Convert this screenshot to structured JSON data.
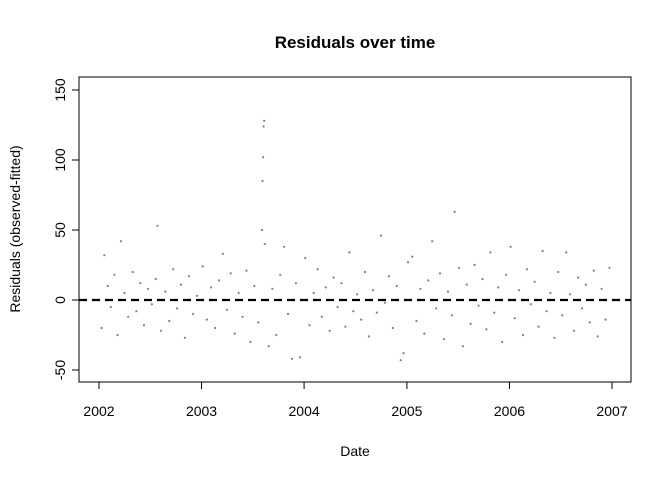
{
  "chart_data": {
    "type": "scatter",
    "title": "Residuals over time",
    "xlabel": "Date",
    "ylabel": "Residuals (observed-fitted)",
    "x_ticks": [
      "2002",
      "2003",
      "2004",
      "2005",
      "2006",
      "2007"
    ],
    "y_ticks": [
      "-50",
      "0",
      "50",
      "100",
      "150"
    ],
    "xlim": [
      "2002-01-01",
      "2007-01-01"
    ],
    "ylim": [
      -50,
      150
    ],
    "grid": false,
    "reference_line": {
      "y": 0,
      "style": "dashed",
      "color": "#000000"
    },
    "point_color": "#808080",
    "points": [
      {
        "x": "2002-01-10",
        "y": -20
      },
      {
        "x": "2002-01-20",
        "y": 32
      },
      {
        "x": "2002-02-01",
        "y": 10
      },
      {
        "x": "2002-02-12",
        "y": -5
      },
      {
        "x": "2002-02-25",
        "y": 18
      },
      {
        "x": "2002-03-08",
        "y": -25
      },
      {
        "x": "2002-03-20",
        "y": 42
      },
      {
        "x": "2002-04-02",
        "y": 5
      },
      {
        "x": "2002-04-15",
        "y": -12
      },
      {
        "x": "2002-05-01",
        "y": 20
      },
      {
        "x": "2002-05-14",
        "y": -8
      },
      {
        "x": "2002-05-28",
        "y": 12
      },
      {
        "x": "2002-06-10",
        "y": -18
      },
      {
        "x": "2002-06-24",
        "y": 8
      },
      {
        "x": "2002-07-08",
        "y": -3
      },
      {
        "x": "2002-07-22",
        "y": 15
      },
      {
        "x": "2002-07-28",
        "y": 53
      },
      {
        "x": "2002-08-10",
        "y": -22
      },
      {
        "x": "2002-08-25",
        "y": 6
      },
      {
        "x": "2002-09-08",
        "y": -15
      },
      {
        "x": "2002-09-22",
        "y": 22
      },
      {
        "x": "2002-10-06",
        "y": -6
      },
      {
        "x": "2002-10-20",
        "y": 11
      },
      {
        "x": "2002-11-03",
        "y": -27
      },
      {
        "x": "2002-11-18",
        "y": 17
      },
      {
        "x": "2002-12-02",
        "y": -10
      },
      {
        "x": "2002-12-16",
        "y": 3
      },
      {
        "x": "2003-01-05",
        "y": 24
      },
      {
        "x": "2003-01-20",
        "y": -14
      },
      {
        "x": "2003-02-04",
        "y": 9
      },
      {
        "x": "2003-02-18",
        "y": -20
      },
      {
        "x": "2003-03-04",
        "y": 14
      },
      {
        "x": "2003-03-18",
        "y": 33
      },
      {
        "x": "2003-04-01",
        "y": -7
      },
      {
        "x": "2003-04-15",
        "y": 19
      },
      {
        "x": "2003-04-29",
        "y": -24
      },
      {
        "x": "2003-05-13",
        "y": 5
      },
      {
        "x": "2003-05-27",
        "y": -12
      },
      {
        "x": "2003-06-10",
        "y": 21
      },
      {
        "x": "2003-06-24",
        "y": -30
      },
      {
        "x": "2003-07-08",
        "y": 10
      },
      {
        "x": "2003-07-22",
        "y": -16
      },
      {
        "x": "2003-08-04",
        "y": 50
      },
      {
        "x": "2003-08-06",
        "y": 85
      },
      {
        "x": "2003-08-08",
        "y": 102
      },
      {
        "x": "2003-08-10",
        "y": 124
      },
      {
        "x": "2003-08-12",
        "y": 128
      },
      {
        "x": "2003-08-14",
        "y": 40
      },
      {
        "x": "2003-08-28",
        "y": -33
      },
      {
        "x": "2003-09-10",
        "y": 8
      },
      {
        "x": "2003-09-24",
        "y": -25
      },
      {
        "x": "2003-10-08",
        "y": 18
      },
      {
        "x": "2003-10-22",
        "y": 38
      },
      {
        "x": "2003-11-05",
        "y": -10
      },
      {
        "x": "2003-11-19",
        "y": -42
      },
      {
        "x": "2003-12-03",
        "y": 12
      },
      {
        "x": "2003-12-17",
        "y": -41
      },
      {
        "x": "2004-01-05",
        "y": 30
      },
      {
        "x": "2004-01-20",
        "y": -18
      },
      {
        "x": "2004-02-04",
        "y": 5
      },
      {
        "x": "2004-02-18",
        "y": 22
      },
      {
        "x": "2004-03-04",
        "y": -12
      },
      {
        "x": "2004-03-18",
        "y": 9
      },
      {
        "x": "2004-04-01",
        "y": -22
      },
      {
        "x": "2004-04-15",
        "y": 16
      },
      {
        "x": "2004-04-29",
        "y": -5
      },
      {
        "x": "2004-05-13",
        "y": 12
      },
      {
        "x": "2004-05-27",
        "y": -19
      },
      {
        "x": "2004-06-10",
        "y": 34
      },
      {
        "x": "2004-06-24",
        "y": -8
      },
      {
        "x": "2004-07-08",
        "y": 4
      },
      {
        "x": "2004-07-22",
        "y": -14
      },
      {
        "x": "2004-08-05",
        "y": 20
      },
      {
        "x": "2004-08-19",
        "y": -26
      },
      {
        "x": "2004-09-02",
        "y": 7
      },
      {
        "x": "2004-09-16",
        "y": -9
      },
      {
        "x": "2004-10-01",
        "y": 46
      },
      {
        "x": "2004-10-15",
        "y": -2
      },
      {
        "x": "2004-10-29",
        "y": 17
      },
      {
        "x": "2004-11-12",
        "y": -20
      },
      {
        "x": "2004-11-26",
        "y": 10
      },
      {
        "x": "2004-12-10",
        "y": -43
      },
      {
        "x": "2004-12-20",
        "y": -38
      },
      {
        "x": "2005-01-05",
        "y": 27
      },
      {
        "x": "2005-01-20",
        "y": 31
      },
      {
        "x": "2005-02-04",
        "y": -15
      },
      {
        "x": "2005-02-18",
        "y": 8
      },
      {
        "x": "2005-03-04",
        "y": -24
      },
      {
        "x": "2005-03-18",
        "y": 14
      },
      {
        "x": "2005-04-01",
        "y": 42
      },
      {
        "x": "2005-04-15",
        "y": -6
      },
      {
        "x": "2005-04-29",
        "y": 19
      },
      {
        "x": "2005-05-13",
        "y": -28
      },
      {
        "x": "2005-05-27",
        "y": 6
      },
      {
        "x": "2005-06-10",
        "y": -11
      },
      {
        "x": "2005-06-20",
        "y": 63
      },
      {
        "x": "2005-07-05",
        "y": 23
      },
      {
        "x": "2005-07-19",
        "y": -33
      },
      {
        "x": "2005-08-02",
        "y": 11
      },
      {
        "x": "2005-08-16",
        "y": -17
      },
      {
        "x": "2005-08-30",
        "y": 25
      },
      {
        "x": "2005-09-13",
        "y": -4
      },
      {
        "x": "2005-09-27",
        "y": 15
      },
      {
        "x": "2005-10-11",
        "y": -21
      },
      {
        "x": "2005-10-25",
        "y": 34
      },
      {
        "x": "2005-11-08",
        "y": -9
      },
      {
        "x": "2005-11-22",
        "y": 9
      },
      {
        "x": "2005-12-06",
        "y": -30
      },
      {
        "x": "2005-12-20",
        "y": 18
      },
      {
        "x": "2006-01-05",
        "y": 38
      },
      {
        "x": "2006-01-20",
        "y": -13
      },
      {
        "x": "2006-02-04",
        "y": 7
      },
      {
        "x": "2006-02-18",
        "y": -25
      },
      {
        "x": "2006-03-04",
        "y": 22
      },
      {
        "x": "2006-03-18",
        "y": -3
      },
      {
        "x": "2006-04-01",
        "y": 13
      },
      {
        "x": "2006-04-15",
        "y": -19
      },
      {
        "x": "2006-04-29",
        "y": 35
      },
      {
        "x": "2006-05-13",
        "y": -8
      },
      {
        "x": "2006-05-27",
        "y": 5
      },
      {
        "x": "2006-06-10",
        "y": -27
      },
      {
        "x": "2006-06-24",
        "y": 20
      },
      {
        "x": "2006-07-08",
        "y": -11
      },
      {
        "x": "2006-07-22",
        "y": 34
      },
      {
        "x": "2006-08-05",
        "y": 4
      },
      {
        "x": "2006-08-19",
        "y": -22
      },
      {
        "x": "2006-09-02",
        "y": 16
      },
      {
        "x": "2006-09-16",
        "y": -6
      },
      {
        "x": "2006-09-30",
        "y": 11
      },
      {
        "x": "2006-10-14",
        "y": -16
      },
      {
        "x": "2006-10-28",
        "y": 21
      },
      {
        "x": "2006-11-11",
        "y": -26
      },
      {
        "x": "2006-11-25",
        "y": 8
      },
      {
        "x": "2006-12-09",
        "y": -14
      },
      {
        "x": "2006-12-23",
        "y": 23
      }
    ]
  }
}
